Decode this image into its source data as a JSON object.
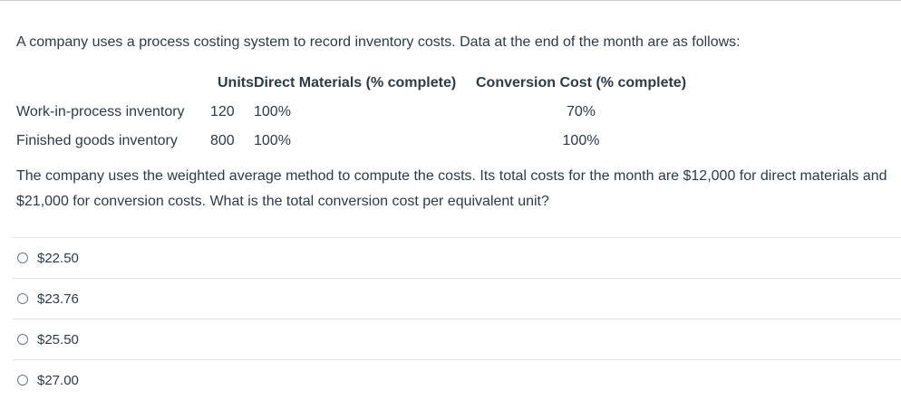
{
  "question": {
    "intro": "A company uses a process costing system to record inventory costs. Data at the end of the month are as follows:",
    "table": {
      "headers": {
        "label": "",
        "units": "Units",
        "direct_materials": "Direct Materials (% complete)",
        "conversion_cost": "Conversion Cost (% complete)"
      },
      "rows": [
        {
          "label": "Work-in-process inventory",
          "units": "120",
          "direct_materials": "100%",
          "conversion_cost": "70%"
        },
        {
          "label": "Finished goods inventory",
          "units": "800",
          "direct_materials": "100%",
          "conversion_cost": "100%"
        }
      ]
    },
    "prompt": "The company uses the weighted average method to compute the costs. Its total costs for the month are $12,000 for direct materials and $21,000 for conversion costs. What is the total conversion cost per equivalent unit?"
  },
  "answers": [
    {
      "label": "$22.50",
      "selected": false
    },
    {
      "label": "$23.76",
      "selected": false
    },
    {
      "label": "$25.50",
      "selected": false
    },
    {
      "label": "$27.00",
      "selected": false
    }
  ]
}
